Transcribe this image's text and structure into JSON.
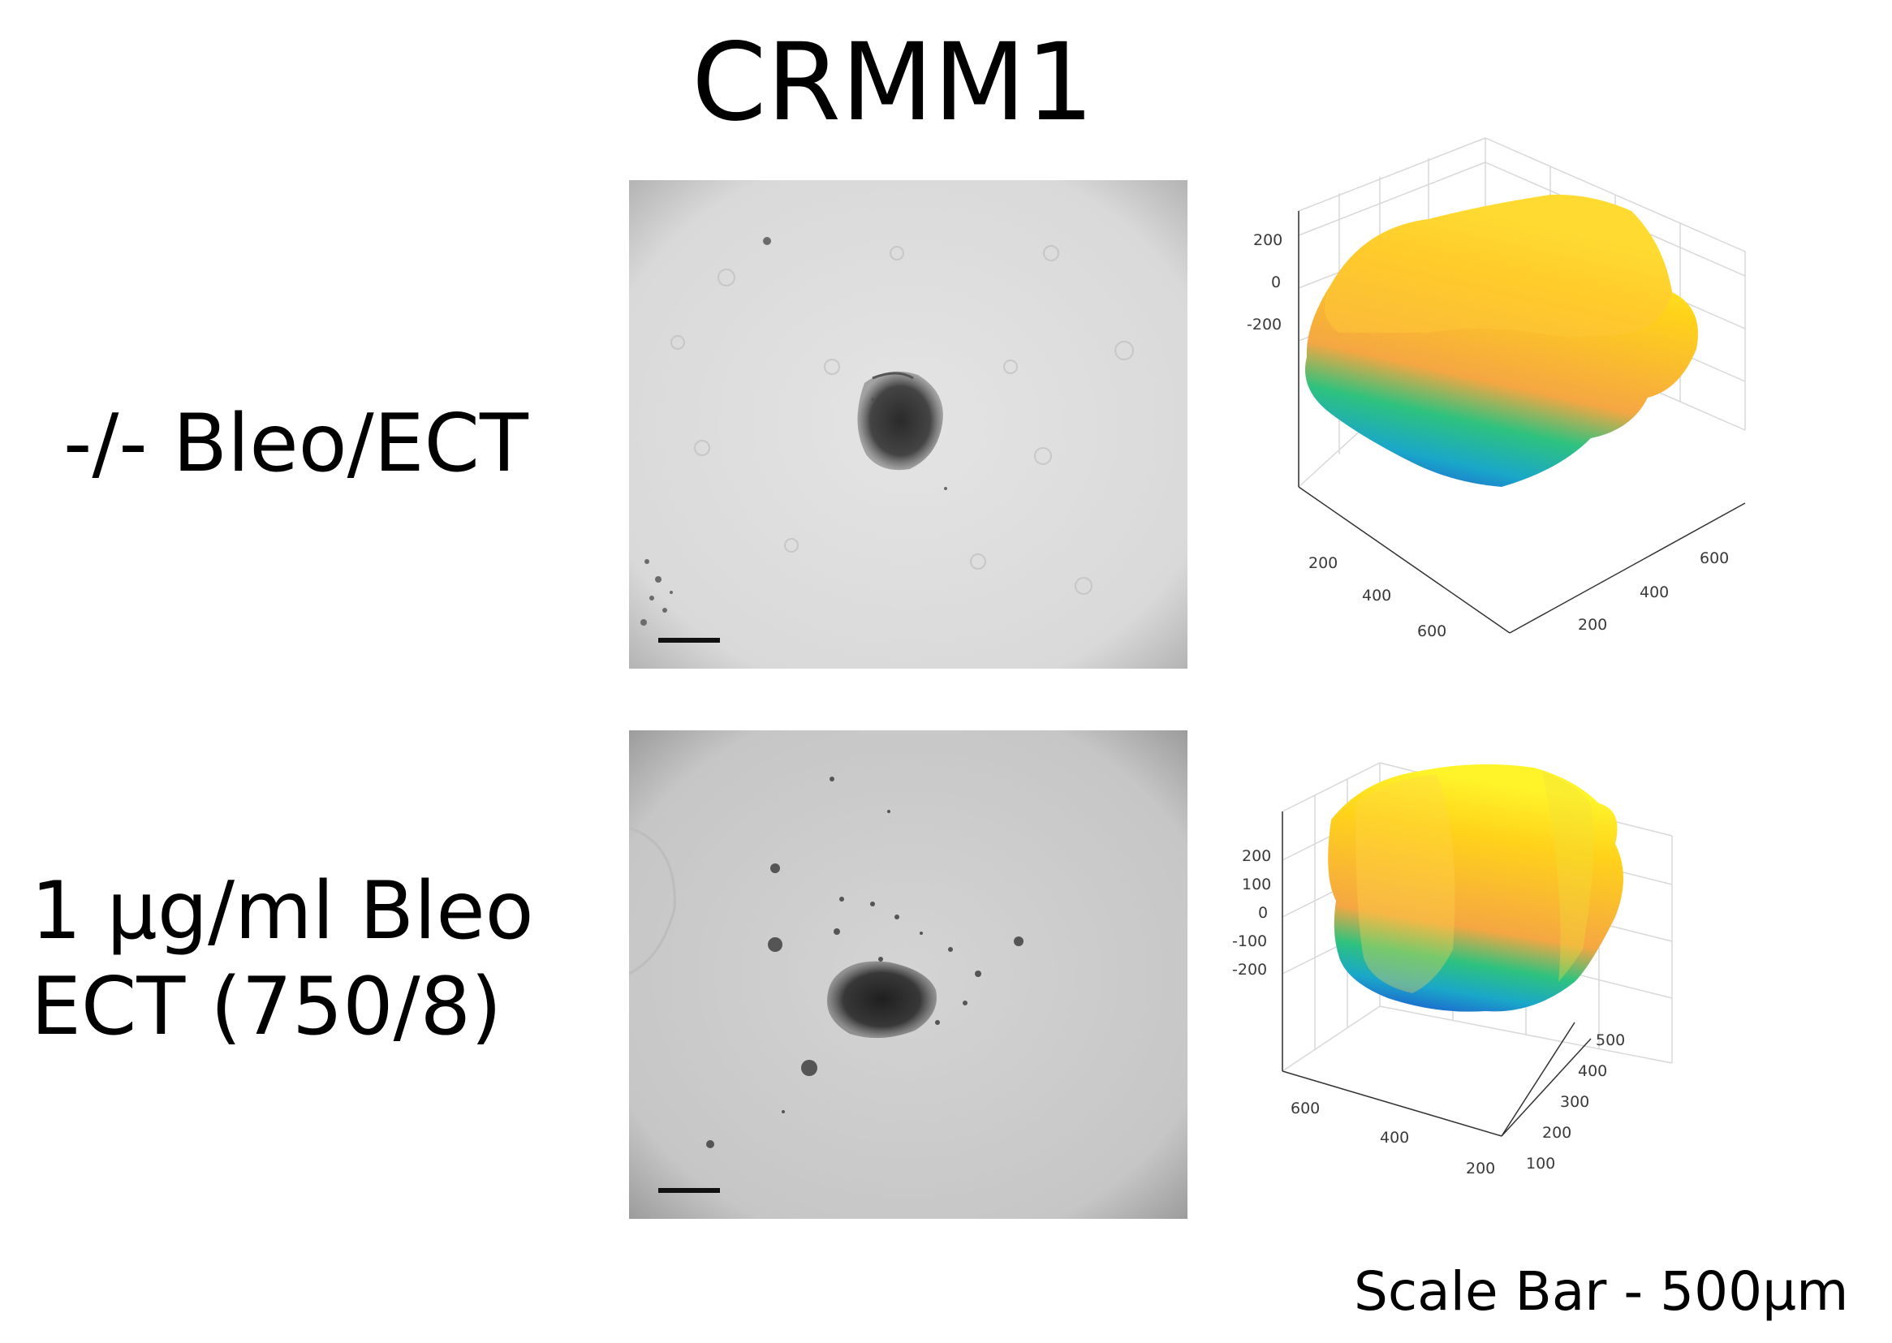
{
  "title": "CRMM1",
  "rows": [
    {
      "label_lines": [
        "-/- Bleo/ECT"
      ],
      "plot": {
        "z_ticks": [
          "200",
          "0",
          "-200"
        ],
        "x_ticks": [
          "200",
          "400",
          "600"
        ],
        "y_ticks": [
          "200",
          "400",
          "600"
        ]
      }
    },
    {
      "label_lines": [
        "1 µg/ml Bleo",
        "ECT (750/8)"
      ],
      "plot": {
        "z_ticks": [
          "200",
          "100",
          "0",
          "-100",
          "-200"
        ],
        "x_ticks": [
          "600",
          "400",
          "200"
        ],
        "y_ticks": [
          "100",
          "200",
          "300",
          "400",
          "500"
        ]
      }
    }
  ],
  "scale_note": "Scale Bar - 500µm",
  "colormap": [
    "#1f3fd1",
    "#1aa7c9",
    "#2ec27e",
    "#f5a742",
    "#ffd21a",
    "#fff42a"
  ]
}
